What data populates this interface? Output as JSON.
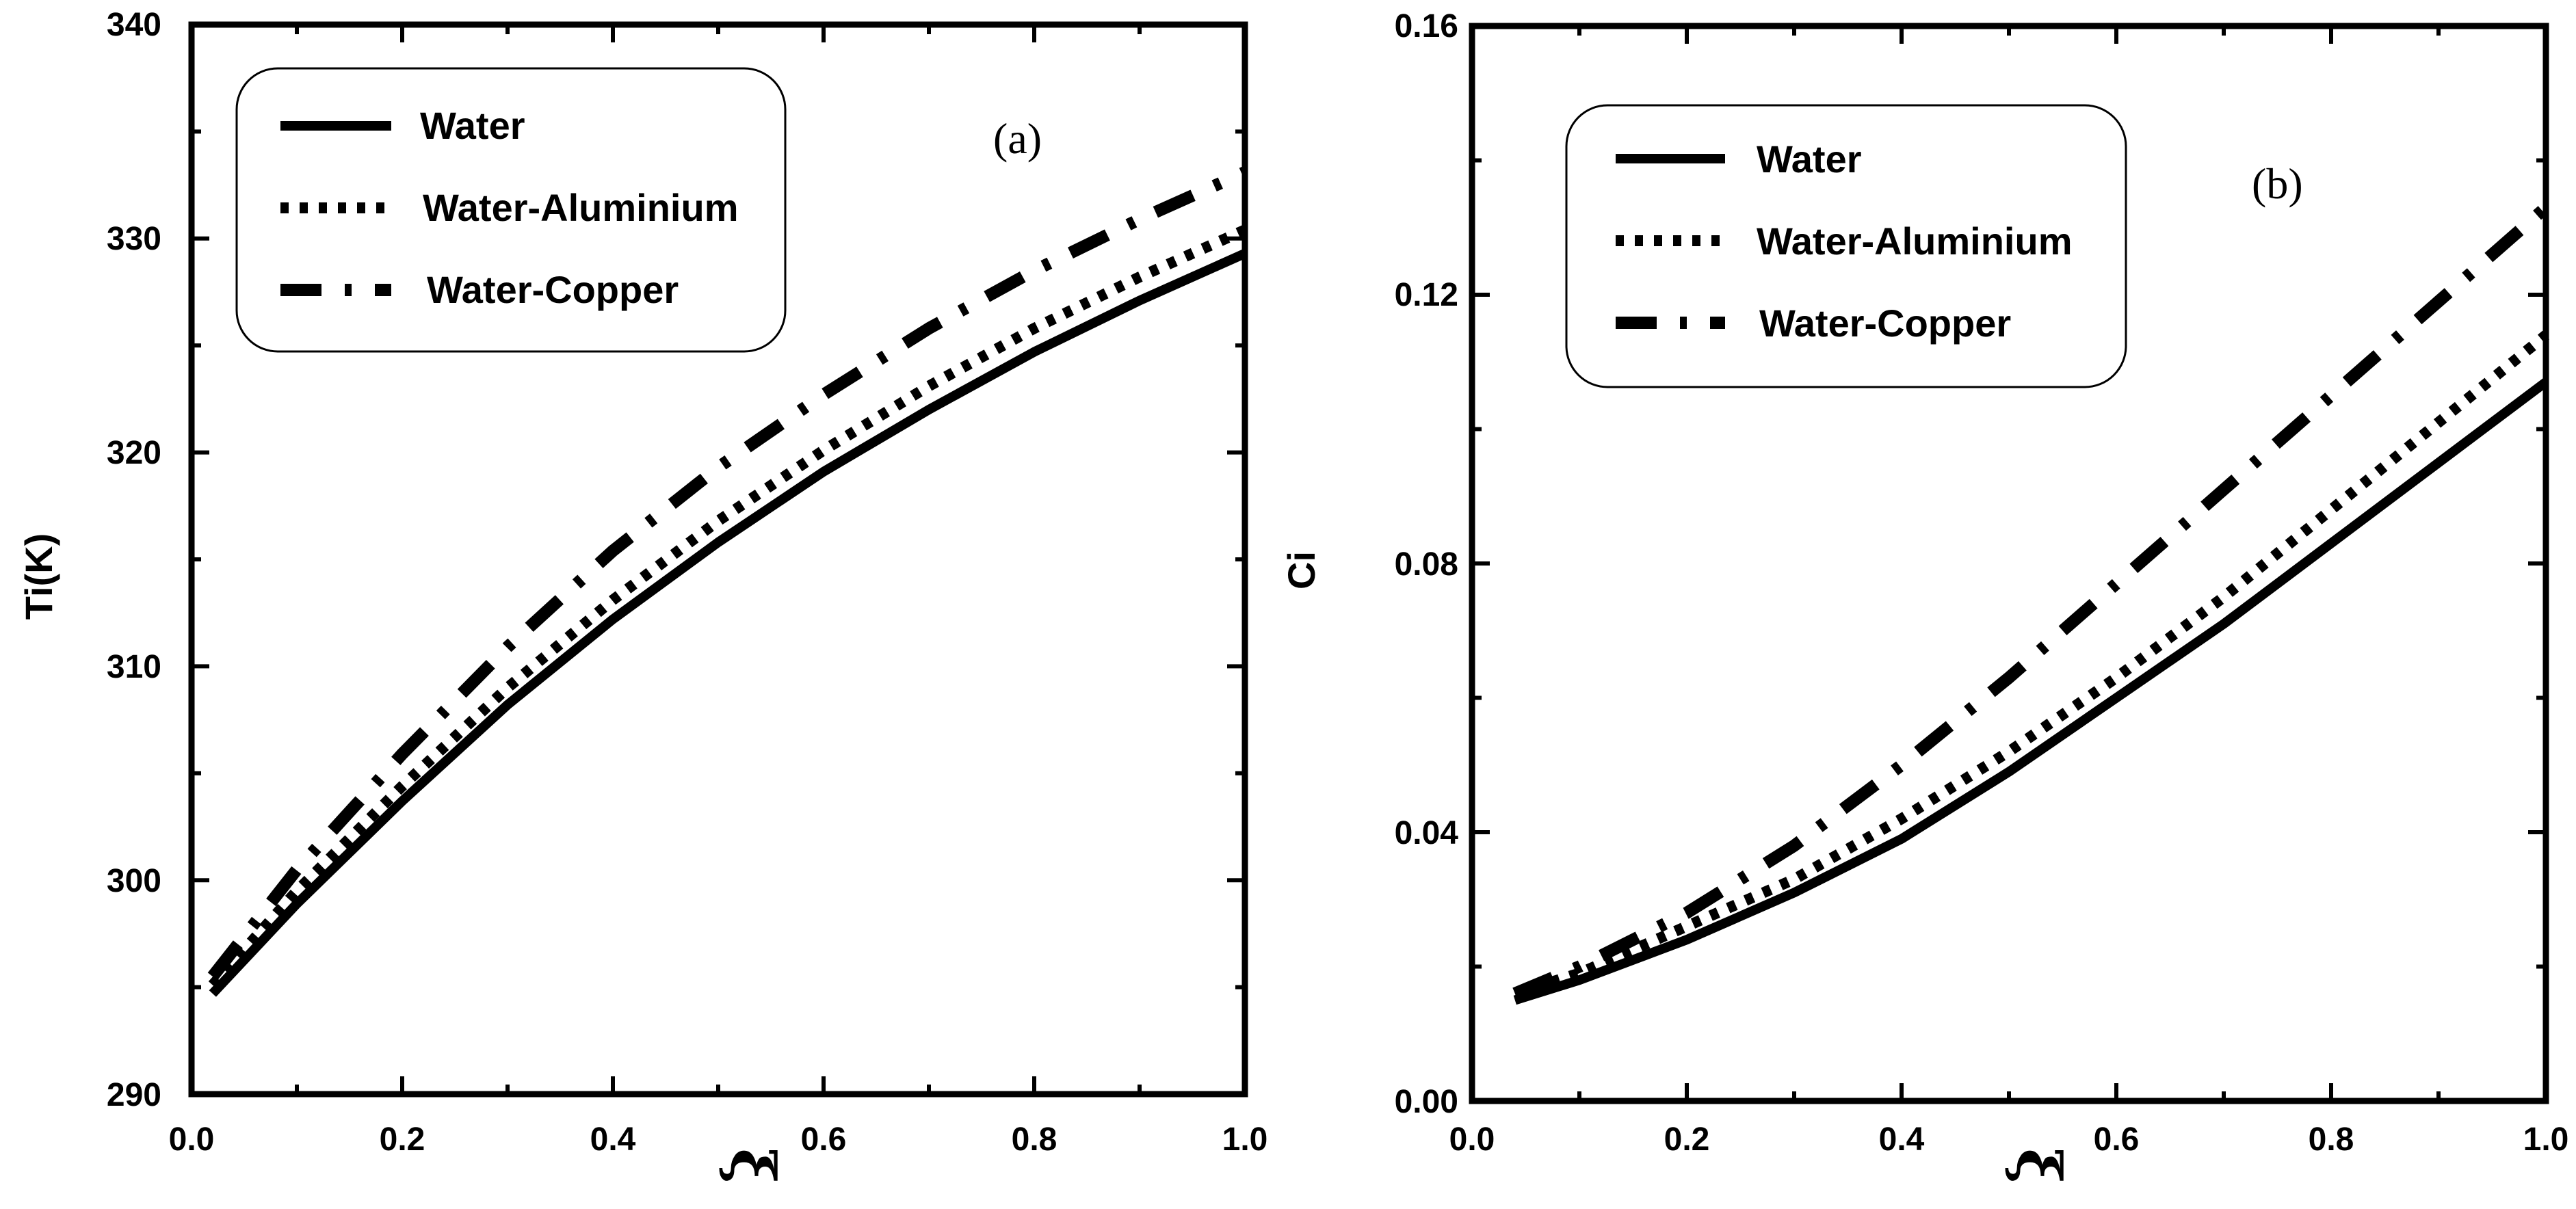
{
  "chart_data": [
    {
      "type": "line",
      "panel_label": "(a)",
      "xlabel": "ξ",
      "ylabel": "Ti(K)",
      "xlim": [
        0.0,
        1.0
      ],
      "ylim": [
        290,
        340
      ],
      "x_ticks": [
        "0.0",
        "0.2",
        "0.4",
        "0.6",
        "0.8",
        "1.0"
      ],
      "y_ticks": [
        "290",
        "300",
        "310",
        "320",
        "330",
        "340"
      ],
      "legend_position": "top-left",
      "series": [
        {
          "name": "Water",
          "style": "solid",
          "x": [
            0.02,
            0.1,
            0.2,
            0.3,
            0.4,
            0.5,
            0.6,
            0.7,
            0.8,
            0.9,
            1.0
          ],
          "y": [
            294.7,
            298.9,
            303.7,
            308.2,
            312.2,
            315.8,
            319.1,
            322.0,
            324.7,
            327.1,
            329.3
          ]
        },
        {
          "name": "Water-Aluminium",
          "style": "dotted",
          "x": [
            0.02,
            0.1,
            0.2,
            0.3,
            0.4,
            0.5,
            0.6,
            0.7,
            0.8,
            0.9,
            1.0
          ],
          "y": [
            295.1,
            299.5,
            304.4,
            309.0,
            313.1,
            316.8,
            320.1,
            323.1,
            325.8,
            328.2,
            330.4
          ]
        },
        {
          "name": "Water-Copper",
          "style": "dash-dot",
          "x": [
            0.02,
            0.1,
            0.2,
            0.3,
            0.4,
            0.5,
            0.6,
            0.7,
            0.8,
            0.9,
            1.0
          ],
          "y": [
            295.5,
            300.5,
            305.9,
            310.9,
            315.4,
            319.3,
            322.7,
            325.8,
            328.5,
            330.9,
            333.1
          ]
        }
      ]
    },
    {
      "type": "line",
      "panel_label": "(b)",
      "xlabel": "ξ",
      "ylabel": "Ci",
      "xlim": [
        0.0,
        1.0
      ],
      "ylim": [
        0.0,
        0.16
      ],
      "x_ticks": [
        "0.0",
        "0.2",
        "0.4",
        "0.6",
        "0.8",
        "1.0"
      ],
      "y_ticks": [
        "0.00",
        "0.04",
        "0.08",
        "0.12",
        "0.16"
      ],
      "legend_position": "top-left",
      "series": [
        {
          "name": "Water",
          "style": "solid",
          "x": [
            0.04,
            0.1,
            0.2,
            0.3,
            0.4,
            0.5,
            0.6,
            0.7,
            0.8,
            0.9,
            1.0
          ],
          "y": [
            0.015,
            0.018,
            0.024,
            0.031,
            0.039,
            0.049,
            0.06,
            0.071,
            0.083,
            0.095,
            0.107
          ]
        },
        {
          "name": "Water-Aluminium",
          "style": "dotted",
          "x": [
            0.04,
            0.1,
            0.2,
            0.3,
            0.4,
            0.5,
            0.6,
            0.7,
            0.8,
            0.9,
            1.0
          ],
          "y": [
            0.016,
            0.019,
            0.026,
            0.033,
            0.042,
            0.052,
            0.063,
            0.075,
            0.088,
            0.101,
            0.114
          ]
        },
        {
          "name": "Water-Copper",
          "style": "dash-dot",
          "x": [
            0.04,
            0.1,
            0.2,
            0.3,
            0.4,
            0.5,
            0.6,
            0.7,
            0.8,
            0.9,
            1.0
          ],
          "y": [
            0.016,
            0.02,
            0.028,
            0.038,
            0.05,
            0.063,
            0.077,
            0.091,
            0.105,
            0.119,
            0.133
          ]
        }
      ]
    }
  ]
}
